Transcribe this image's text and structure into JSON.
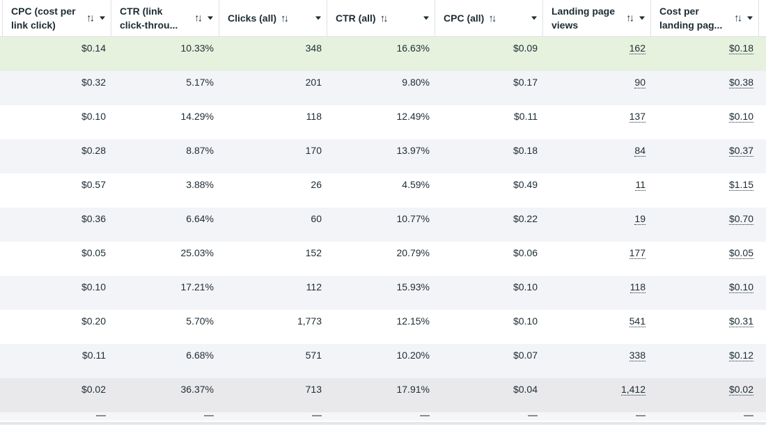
{
  "columns": [
    {
      "label": "CPC (cost per link click)"
    },
    {
      "label": "CTR (link click-throu..."
    },
    {
      "label": "Clicks (all)"
    },
    {
      "label": "CTR (all)"
    },
    {
      "label": "CPC (all)"
    },
    {
      "label": "Landing page views"
    },
    {
      "label": "Cost per landing pag..."
    }
  ],
  "icons": {
    "sort": "sort-arrows-icon",
    "menu": "chevron-down-icon"
  },
  "rows": [
    {
      "cpc_link": "$0.14",
      "ctr_link": "10.33%",
      "clicks_all": "348",
      "ctr_all": "16.63%",
      "cpc_all": "$0.09",
      "lpv": "162",
      "cost_lpv": "$0.18"
    },
    {
      "cpc_link": "$0.32",
      "ctr_link": "5.17%",
      "clicks_all": "201",
      "ctr_all": "9.80%",
      "cpc_all": "$0.17",
      "lpv": "90",
      "cost_lpv": "$0.38"
    },
    {
      "cpc_link": "$0.10",
      "ctr_link": "14.29%",
      "clicks_all": "118",
      "ctr_all": "12.49%",
      "cpc_all": "$0.11",
      "lpv": "137",
      "cost_lpv": "$0.10"
    },
    {
      "cpc_link": "$0.28",
      "ctr_link": "8.87%",
      "clicks_all": "170",
      "ctr_all": "13.97%",
      "cpc_all": "$0.18",
      "lpv": "84",
      "cost_lpv": "$0.37"
    },
    {
      "cpc_link": "$0.57",
      "ctr_link": "3.88%",
      "clicks_all": "26",
      "ctr_all": "4.59%",
      "cpc_all": "$0.49",
      "lpv": "11",
      "cost_lpv": "$1.15"
    },
    {
      "cpc_link": "$0.36",
      "ctr_link": "6.64%",
      "clicks_all": "60",
      "ctr_all": "10.77%",
      "cpc_all": "$0.22",
      "lpv": "19",
      "cost_lpv": "$0.70"
    },
    {
      "cpc_link": "$0.05",
      "ctr_link": "25.03%",
      "clicks_all": "152",
      "ctr_all": "20.79%",
      "cpc_all": "$0.06",
      "lpv": "177",
      "cost_lpv": "$0.05"
    },
    {
      "cpc_link": "$0.10",
      "ctr_link": "17.21%",
      "clicks_all": "112",
      "ctr_all": "15.93%",
      "cpc_all": "$0.10",
      "lpv": "118",
      "cost_lpv": "$0.10"
    },
    {
      "cpc_link": "$0.20",
      "ctr_link": "5.70%",
      "clicks_all": "1,773",
      "ctr_all": "12.15%",
      "cpc_all": "$0.10",
      "lpv": "541",
      "cost_lpv": "$0.31"
    },
    {
      "cpc_link": "$0.11",
      "ctr_link": "6.68%",
      "clicks_all": "571",
      "ctr_all": "10.20%",
      "cpc_all": "$0.07",
      "lpv": "338",
      "cost_lpv": "$0.12"
    },
    {
      "cpc_link": "$0.02",
      "ctr_link": "36.37%",
      "clicks_all": "713",
      "ctr_all": "17.91%",
      "cpc_all": "$0.04",
      "lpv": "1,412",
      "cost_lpv": "$0.02"
    }
  ],
  "row_colors": {
    "highlight": "#e6f2de",
    "alt": "#f3f4f8",
    "total": "#e9e9ec"
  }
}
